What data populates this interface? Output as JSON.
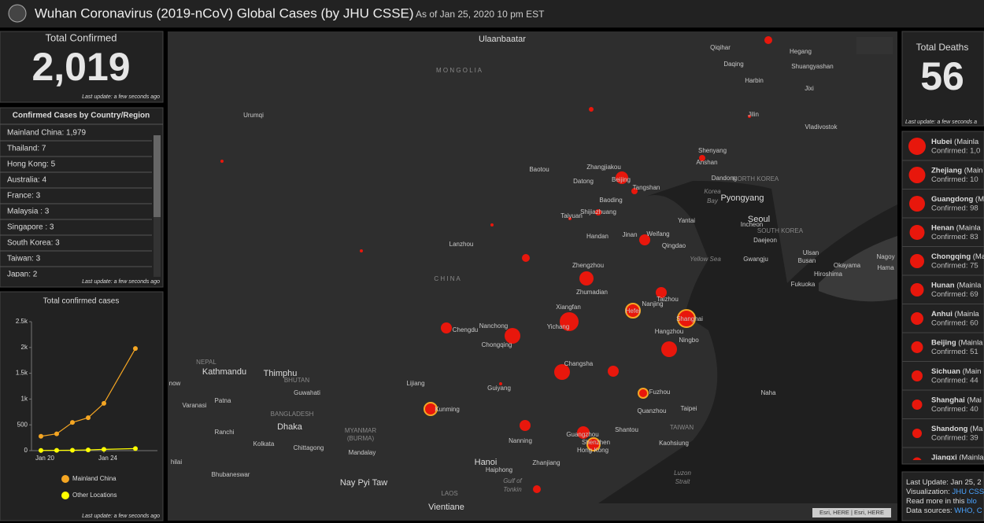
{
  "header": {
    "title": "Wuhan Coronavirus (2019-nCoV) Global Cases (by JHU CSSE)",
    "subtitle": "As of Jan 25, 2020 10 pm EST"
  },
  "total_confirmed": {
    "label": "Total Confirmed",
    "value": "2,019",
    "note": "Last update: a few seconds ago"
  },
  "region_list": {
    "title": "Confirmed Cases by Country/Region",
    "rows": [
      "Mainland China: 1,979",
      "Thailand: 7",
      "Hong Kong: 5",
      "Australia: 4",
      "France: 3",
      "Malaysia : 3",
      "Singapore : 3",
      "South Korea: 3",
      "Taiwan: 3",
      "Japan: 2"
    ],
    "note": "Last update: a few seconds ago"
  },
  "chart_data": {
    "type": "line",
    "title": "Total confirmed cases",
    "x": [
      20,
      21,
      22,
      23,
      24,
      26
    ],
    "series": [
      {
        "name": "Mainland China",
        "color": "#f5a623",
        "values": [
          278,
          326,
          547,
          639,
          916,
          1979
        ]
      },
      {
        "name": "Other Locations",
        "color": "#ffff00",
        "values": [
          4,
          6,
          8,
          14,
          25,
          40
        ]
      }
    ],
    "xlim": [
      19.4,
      27.4
    ],
    "xticks": [
      {
        "value": 20,
        "label": "Jan 20"
      },
      {
        "value": 24,
        "label": "Jan 24"
      }
    ],
    "ylim": [
      0,
      2500
    ],
    "yticks": [
      0,
      500,
      {
        "value": 1000,
        "label": "1k"
      },
      {
        "value": 1500,
        "label": "1.5k"
      },
      {
        "value": 2000,
        "label": "2k"
      },
      {
        "value": 2500,
        "label": "2.5k"
      }
    ],
    "note": "Last update: a few seconds ago"
  },
  "total_deaths": {
    "label": "Total Deaths",
    "value": "56",
    "note": "Last update: a few seconds a"
  },
  "province_list": [
    {
      "name": "Hubei",
      "region": " (Mainla",
      "detail": "Confirmed: 1,0"
    },
    {
      "name": "Zhejiang",
      "region": " (Main",
      "detail": "Confirmed: 10"
    },
    {
      "name": "Guangdong",
      "region": " (M",
      "detail": "Confirmed: 98"
    },
    {
      "name": "Henan",
      "region": " (Mainla",
      "detail": "Confirmed: 83"
    },
    {
      "name": "Chongqing",
      "region": " (Main",
      "detail": "Confirmed: 75"
    },
    {
      "name": "Hunan",
      "region": " (Mainla",
      "detail": "Confirmed: 69"
    },
    {
      "name": "Anhui",
      "region": " (Mainla",
      "detail": "Confirmed: 60"
    },
    {
      "name": "Beijing",
      "region": " (Mainla",
      "detail": "Confirmed: 51"
    },
    {
      "name": "Sichuan",
      "region": " (Main",
      "detail": "Confirmed: 44"
    },
    {
      "name": "Shanghai",
      "region": " (Mai",
      "detail": "Confirmed: 40"
    },
    {
      "name": "Shandong",
      "region": " (Ma",
      "detail": "Confirmed: 39"
    },
    {
      "name": "Jiangxi",
      "region": " (Mainla",
      "detail": ""
    }
  ],
  "info": [
    [
      "Last Update: Jan 25, 2"
    ],
    [
      "Visualization: ",
      "JHU CSS"
    ],
    [
      "Read more in this ",
      "blo"
    ],
    [
      "Data sources: ",
      "WHO, C"
    ]
  ],
  "map": {
    "attribution": "Esri, HERE | Esri, HERE",
    "labels": [
      "Ulaanbaatar",
      "M O N G O L I A",
      "Urumqi",
      "Qiqihar",
      "Hegang",
      "Daqing",
      "Shuangyashan",
      "Harbin",
      "Jixi",
      "Jilin",
      "Vladivostok",
      "Shenyang",
      "Anshan",
      "Baotou",
      "Zhangjiakou",
      "Datong",
      "Beijing",
      "Dandong",
      "NORTH KOREA",
      "Tangshan",
      "Pyongyang",
      "Baoding",
      "Taiyuan",
      "Shijiazhuang",
      "Yantai",
      "Seoul",
      "Incheon",
      "Daejeon",
      "SOUTH KOREA",
      "Handan",
      "Jinan",
      "Weifang",
      "Qingdao",
      "Lanzhou",
      "Ulsan",
      "Busan",
      "Gwangju",
      "Yellow Sea",
      "Okayama",
      "Hiroshima",
      "Nagoy",
      "Hama",
      "Fukuoka",
      "Zhengzhou",
      "C H I N A",
      "Zhumadian",
      "Taizhou",
      "Nanjing",
      "Xiangfan",
      "Hefei",
      "Shanghai",
      "Chengdu",
      "Nanchong",
      "Yichang",
      "Hangzhou",
      "Ningbo",
      "Chongqing",
      "Changsha",
      "NEPAL",
      "Kathmandu",
      "Thimphu",
      "BHUTAN",
      "now",
      "Lijiang",
      "Guiyang",
      "Fuzhou",
      "Naha",
      "Guwahati",
      "Varanasi",
      "Patna",
      "Kunming",
      "Quanzhou",
      "Taipei",
      "BANGLADESH",
      "Dhaka",
      "MYANMAR",
      "(BURMA)",
      "Ranchi",
      "Shantou",
      "TAIWAN",
      "Guangzhou",
      "Shenzhen",
      "Hong Kong",
      "Nanning",
      "Kolkata",
      "Chittagong",
      "Kaohsiung",
      "Mandalay",
      "Hanoi",
      "Haiphong",
      "Zhanjiang",
      "hilai",
      "Gulf of",
      "Tonkin",
      "Luzon",
      "Strait",
      "Bhubaneswar",
      "Nay Pyi Taw",
      "LAOS",
      "Vientiane",
      "Korea",
      "Bay"
    ]
  }
}
